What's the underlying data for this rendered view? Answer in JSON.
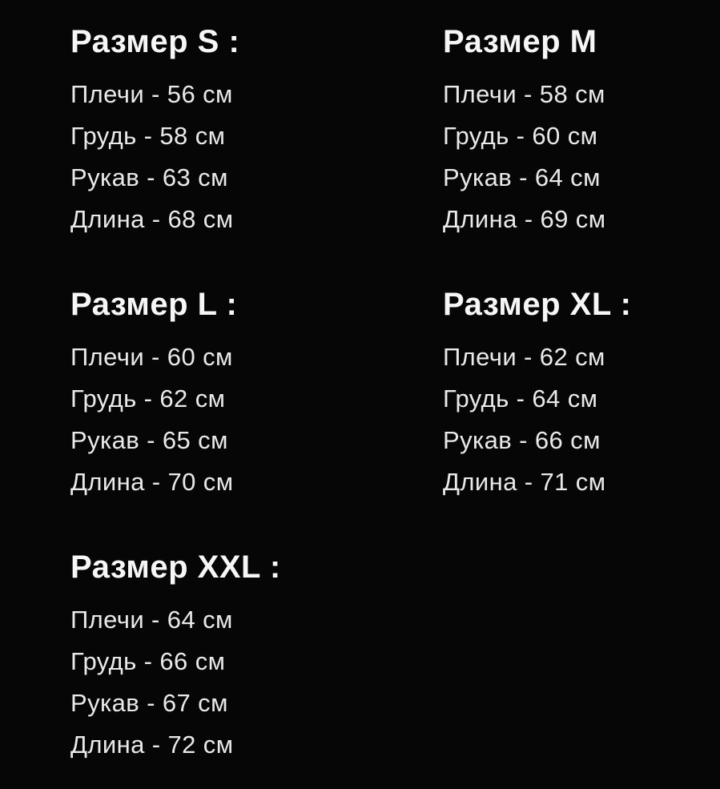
{
  "page": {
    "background_color": "#060606",
    "title_color": "#f6f6f6",
    "text_color": "#e9e9e9"
  },
  "size_blocks": [
    {
      "size": "S",
      "title": "Размер S :",
      "items": [
        "Плечи - 56 см",
        "Грудь - 58 см",
        "Рукав - 63 см",
        "Длина - 68 см"
      ]
    },
    {
      "size": "M",
      "title": "Размер M",
      "items": [
        "Плечи - 58 см",
        "Грудь - 60 см",
        "Рукав - 64 см",
        "Длина - 69 см"
      ]
    },
    {
      "size": "L",
      "title": "Размер L :",
      "items": [
        "Плечи - 60 см",
        "Грудь - 62 см",
        "Рукав - 65 см",
        "Длина - 70 см"
      ]
    },
    {
      "size": "XL",
      "title": "Размер XL :",
      "items": [
        "Плечи - 62 см",
        "Грудь - 64 см",
        "Рукав - 66 см",
        "Длина - 71 см"
      ]
    },
    {
      "size": "XXL",
      "title": "Размер XXL :",
      "items": [
        "Плечи - 64 см",
        "Грудь - 66 см",
        "Рукав - 67 см",
        "Длина - 72 см"
      ]
    }
  ]
}
